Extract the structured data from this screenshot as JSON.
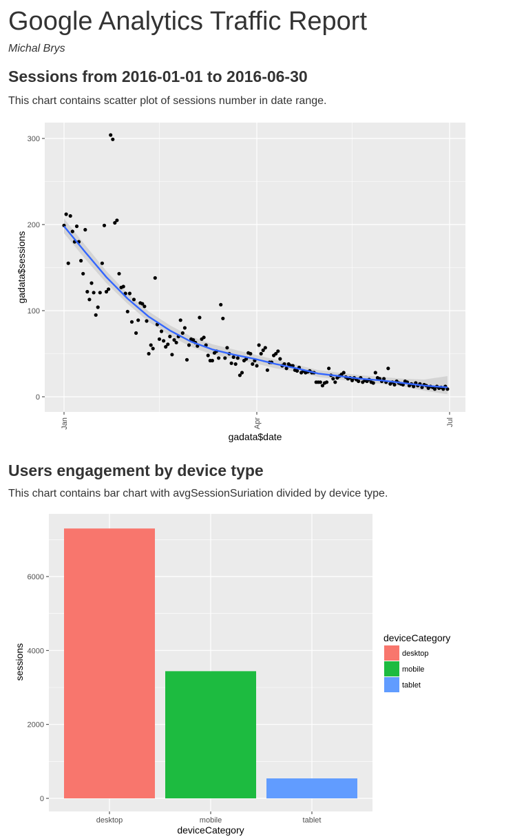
{
  "report": {
    "title": "Google Analytics Traffic Report",
    "author": "Michal Brys"
  },
  "sections": [
    {
      "heading": "Sessions from 2016-01-01 to 2016-06-30",
      "description": "This chart contains scatter plot of sessions number in date range."
    },
    {
      "heading": "Users engagement by device type",
      "description": "This chart contains bar chart with avgSessionSuriation divided by device type."
    }
  ],
  "colors": {
    "panel_bg": "#ebebeb",
    "grid": "#ffffff",
    "point": "#000000",
    "smooth_line": "#3366ff",
    "ribbon": "#cccccc",
    "desktop": "#f8766d",
    "mobile": "#1dbb40",
    "tablet": "#619cff"
  },
  "chart_data": [
    {
      "type": "scatter",
      "title": "",
      "xlabel": "gadata$date",
      "ylabel": "gadata$sessions",
      "x_tick_labels": [
        "Jan",
        "Apr",
        "Jul"
      ],
      "y_tick_labels": [
        "0",
        "100",
        "200",
        "300"
      ],
      "xlim": [
        "2016-01-01",
        "2016-07-01"
      ],
      "ylim": [
        0,
        300
      ],
      "grid": true,
      "smoothing": "loess with confidence band",
      "points": [
        {
          "x": "2016-01-01",
          "y": 199
        },
        {
          "x": "2016-01-02",
          "y": 212
        },
        {
          "x": "2016-01-03",
          "y": 155
        },
        {
          "x": "2016-01-04",
          "y": 210
        },
        {
          "x": "2016-01-05",
          "y": 192
        },
        {
          "x": "2016-01-06",
          "y": 180
        },
        {
          "x": "2016-01-07",
          "y": 198
        },
        {
          "x": "2016-01-08",
          "y": 180
        },
        {
          "x": "2016-01-09",
          "y": 158
        },
        {
          "x": "2016-01-10",
          "y": 143
        },
        {
          "x": "2016-01-11",
          "y": 194
        },
        {
          "x": "2016-01-12",
          "y": 122
        },
        {
          "x": "2016-01-13",
          "y": 113
        },
        {
          "x": "2016-01-14",
          "y": 132
        },
        {
          "x": "2016-01-15",
          "y": 121
        },
        {
          "x": "2016-01-16",
          "y": 95
        },
        {
          "x": "2016-01-17",
          "y": 104
        },
        {
          "x": "2016-01-18",
          "y": 121
        },
        {
          "x": "2016-01-19",
          "y": 155
        },
        {
          "x": "2016-01-20",
          "y": 199
        },
        {
          "x": "2016-01-21",
          "y": 122
        },
        {
          "x": "2016-01-22",
          "y": 125
        },
        {
          "x": "2016-01-23",
          "y": 304
        },
        {
          "x": "2016-01-24",
          "y": 299
        },
        {
          "x": "2016-01-25",
          "y": 202
        },
        {
          "x": "2016-01-26",
          "y": 205
        },
        {
          "x": "2016-01-27",
          "y": 143
        },
        {
          "x": "2016-01-28",
          "y": 127
        },
        {
          "x": "2016-01-29",
          "y": 128
        },
        {
          "x": "2016-01-30",
          "y": 120
        },
        {
          "x": "2016-01-31",
          "y": 99
        },
        {
          "x": "2016-02-01",
          "y": 120
        },
        {
          "x": "2016-02-02",
          "y": 87
        },
        {
          "x": "2016-02-03",
          "y": 113
        },
        {
          "x": "2016-02-04",
          "y": 74
        },
        {
          "x": "2016-02-05",
          "y": 89
        },
        {
          "x": "2016-02-06",
          "y": 109
        },
        {
          "x": "2016-02-07",
          "y": 108
        },
        {
          "x": "2016-02-08",
          "y": 105
        },
        {
          "x": "2016-02-09",
          "y": 88
        },
        {
          "x": "2016-02-10",
          "y": 50
        },
        {
          "x": "2016-02-11",
          "y": 60
        },
        {
          "x": "2016-02-12",
          "y": 56
        },
        {
          "x": "2016-02-13",
          "y": 138
        },
        {
          "x": "2016-02-14",
          "y": 84
        },
        {
          "x": "2016-02-15",
          "y": 67
        },
        {
          "x": "2016-02-16",
          "y": 76
        },
        {
          "x": "2016-02-17",
          "y": 65
        },
        {
          "x": "2016-02-18",
          "y": 58
        },
        {
          "x": "2016-02-19",
          "y": 61
        },
        {
          "x": "2016-02-20",
          "y": 70
        },
        {
          "x": "2016-02-21",
          "y": 49
        },
        {
          "x": "2016-02-22",
          "y": 66
        },
        {
          "x": "2016-02-23",
          "y": 63
        },
        {
          "x": "2016-02-24",
          "y": 70
        },
        {
          "x": "2016-02-25",
          "y": 89
        },
        {
          "x": "2016-02-26",
          "y": 74
        },
        {
          "x": "2016-02-27",
          "y": 80
        },
        {
          "x": "2016-02-28",
          "y": 43
        },
        {
          "x": "2016-02-29",
          "y": 60
        },
        {
          "x": "2016-03-01",
          "y": 67
        },
        {
          "x": "2016-03-02",
          "y": 66
        },
        {
          "x": "2016-03-03",
          "y": 63
        },
        {
          "x": "2016-03-04",
          "y": 59
        },
        {
          "x": "2016-03-05",
          "y": 92
        },
        {
          "x": "2016-03-06",
          "y": 67
        },
        {
          "x": "2016-03-07",
          "y": 69
        },
        {
          "x": "2016-03-08",
          "y": 60
        },
        {
          "x": "2016-03-09",
          "y": 48
        },
        {
          "x": "2016-03-10",
          "y": 42
        },
        {
          "x": "2016-03-11",
          "y": 42
        },
        {
          "x": "2016-03-12",
          "y": 51
        },
        {
          "x": "2016-03-13",
          "y": 53
        },
        {
          "x": "2016-03-14",
          "y": 45
        },
        {
          "x": "2016-03-15",
          "y": 107
        },
        {
          "x": "2016-03-16",
          "y": 91
        },
        {
          "x": "2016-03-17",
          "y": 45
        },
        {
          "x": "2016-03-18",
          "y": 57
        },
        {
          "x": "2016-03-19",
          "y": 50
        },
        {
          "x": "2016-03-20",
          "y": 39
        },
        {
          "x": "2016-03-21",
          "y": 46
        },
        {
          "x": "2016-03-22",
          "y": 38
        },
        {
          "x": "2016-03-23",
          "y": 45
        },
        {
          "x": "2016-03-24",
          "y": 25
        },
        {
          "x": "2016-03-25",
          "y": 28
        },
        {
          "x": "2016-03-26",
          "y": 42
        },
        {
          "x": "2016-03-27",
          "y": 44
        },
        {
          "x": "2016-03-28",
          "y": 51
        },
        {
          "x": "2016-03-29",
          "y": 50
        },
        {
          "x": "2016-03-30",
          "y": 38
        },
        {
          "x": "2016-03-31",
          "y": 42
        },
        {
          "x": "2016-04-01",
          "y": 36
        },
        {
          "x": "2016-04-02",
          "y": 60
        },
        {
          "x": "2016-04-03",
          "y": 50
        },
        {
          "x": "2016-04-04",
          "y": 54
        },
        {
          "x": "2016-04-05",
          "y": 57
        },
        {
          "x": "2016-04-06",
          "y": 31
        },
        {
          "x": "2016-04-07",
          "y": 40
        },
        {
          "x": "2016-04-08",
          "y": 40
        },
        {
          "x": "2016-04-09",
          "y": 48
        },
        {
          "x": "2016-04-10",
          "y": 50
        },
        {
          "x": "2016-04-11",
          "y": 53
        },
        {
          "x": "2016-04-12",
          "y": 44
        },
        {
          "x": "2016-04-13",
          "y": 36
        },
        {
          "x": "2016-04-14",
          "y": 38
        },
        {
          "x": "2016-04-15",
          "y": 33
        },
        {
          "x": "2016-04-16",
          "y": 38
        },
        {
          "x": "2016-04-17",
          "y": 36
        },
        {
          "x": "2016-04-18",
          "y": 36
        },
        {
          "x": "2016-04-19",
          "y": 31
        },
        {
          "x": "2016-04-20",
          "y": 30
        },
        {
          "x": "2016-04-21",
          "y": 34
        },
        {
          "x": "2016-04-22",
          "y": 28
        },
        {
          "x": "2016-04-23",
          "y": 30
        },
        {
          "x": "2016-04-24",
          "y": 28
        },
        {
          "x": "2016-04-25",
          "y": 29
        },
        {
          "x": "2016-04-26",
          "y": 30
        },
        {
          "x": "2016-04-27",
          "y": 28
        },
        {
          "x": "2016-04-28",
          "y": 28
        },
        {
          "x": "2016-04-29",
          "y": 17
        },
        {
          "x": "2016-04-30",
          "y": 17
        },
        {
          "x": "2016-05-01",
          "y": 17
        },
        {
          "x": "2016-05-02",
          "y": 13
        },
        {
          "x": "2016-05-03",
          "y": 16
        },
        {
          "x": "2016-05-04",
          "y": 17
        },
        {
          "x": "2016-05-05",
          "y": 33
        },
        {
          "x": "2016-05-06",
          "y": 25
        },
        {
          "x": "2016-05-07",
          "y": 21
        },
        {
          "x": "2016-05-08",
          "y": 17
        },
        {
          "x": "2016-05-09",
          "y": 22
        },
        {
          "x": "2016-05-10",
          "y": 24
        },
        {
          "x": "2016-05-11",
          "y": 26
        },
        {
          "x": "2016-05-12",
          "y": 28
        },
        {
          "x": "2016-05-13",
          "y": 23
        },
        {
          "x": "2016-05-14",
          "y": 21
        },
        {
          "x": "2016-05-15",
          "y": 22
        },
        {
          "x": "2016-05-16",
          "y": 19
        },
        {
          "x": "2016-05-17",
          "y": 22
        },
        {
          "x": "2016-05-18",
          "y": 20
        },
        {
          "x": "2016-05-19",
          "y": 18
        },
        {
          "x": "2016-05-20",
          "y": 22
        },
        {
          "x": "2016-05-21",
          "y": 17
        },
        {
          "x": "2016-05-22",
          "y": 19
        },
        {
          "x": "2016-05-23",
          "y": 18
        },
        {
          "x": "2016-05-24",
          "y": 20
        },
        {
          "x": "2016-05-25",
          "y": 17
        },
        {
          "x": "2016-05-26",
          "y": 16
        },
        {
          "x": "2016-05-27",
          "y": 28
        },
        {
          "x": "2016-05-28",
          "y": 22
        },
        {
          "x": "2016-05-29",
          "y": 21
        },
        {
          "x": "2016-05-30",
          "y": 18
        },
        {
          "x": "2016-05-31",
          "y": 21
        },
        {
          "x": "2016-06-01",
          "y": 17
        },
        {
          "x": "2016-06-02",
          "y": 33
        },
        {
          "x": "2016-06-03",
          "y": 15
        },
        {
          "x": "2016-06-04",
          "y": 17
        },
        {
          "x": "2016-06-05",
          "y": 14
        },
        {
          "x": "2016-06-06",
          "y": 18
        },
        {
          "x": "2016-06-07",
          "y": 16
        },
        {
          "x": "2016-06-08",
          "y": 15
        },
        {
          "x": "2016-06-09",
          "y": 14
        },
        {
          "x": "2016-06-10",
          "y": 18
        },
        {
          "x": "2016-06-11",
          "y": 17
        },
        {
          "x": "2016-06-12",
          "y": 13
        },
        {
          "x": "2016-06-13",
          "y": 15
        },
        {
          "x": "2016-06-14",
          "y": 12
        },
        {
          "x": "2016-06-15",
          "y": 16
        },
        {
          "x": "2016-06-16",
          "y": 13
        },
        {
          "x": "2016-06-17",
          "y": 15
        },
        {
          "x": "2016-06-18",
          "y": 11
        },
        {
          "x": "2016-06-19",
          "y": 14
        },
        {
          "x": "2016-06-20",
          "y": 13
        },
        {
          "x": "2016-06-21",
          "y": 10
        },
        {
          "x": "2016-06-22",
          "y": 12
        },
        {
          "x": "2016-06-23",
          "y": 11
        },
        {
          "x": "2016-06-24",
          "y": 9
        },
        {
          "x": "2016-06-25",
          "y": 12
        },
        {
          "x": "2016-06-26",
          "y": 10
        },
        {
          "x": "2016-06-27",
          "y": 11
        },
        {
          "x": "2016-06-28",
          "y": 9
        },
        {
          "x": "2016-06-29",
          "y": 12
        },
        {
          "x": "2016-06-30",
          "y": 9
        }
      ],
      "smooth": [
        {
          "x": "2016-01-01",
          "y": 198,
          "lo": 190,
          "hi": 207
        },
        {
          "x": "2016-01-11",
          "y": 168,
          "lo": 160,
          "hi": 176
        },
        {
          "x": "2016-01-21",
          "y": 139,
          "lo": 132,
          "hi": 146
        },
        {
          "x": "2016-01-31",
          "y": 114,
          "lo": 108,
          "hi": 120
        },
        {
          "x": "2016-02-10",
          "y": 93,
          "lo": 87,
          "hi": 99
        },
        {
          "x": "2016-02-20",
          "y": 77,
          "lo": 71,
          "hi": 83
        },
        {
          "x": "2016-03-01",
          "y": 64,
          "lo": 58,
          "hi": 70
        },
        {
          "x": "2016-03-11",
          "y": 55,
          "lo": 49,
          "hi": 61
        },
        {
          "x": "2016-03-21",
          "y": 49,
          "lo": 44,
          "hi": 55
        },
        {
          "x": "2016-03-31",
          "y": 44,
          "lo": 39,
          "hi": 49
        },
        {
          "x": "2016-04-10",
          "y": 38,
          "lo": 33,
          "hi": 43
        },
        {
          "x": "2016-04-20",
          "y": 33,
          "lo": 29,
          "hi": 37
        },
        {
          "x": "2016-04-30",
          "y": 27,
          "lo": 23,
          "hi": 31
        },
        {
          "x": "2016-05-10",
          "y": 24,
          "lo": 20,
          "hi": 28
        },
        {
          "x": "2016-05-20",
          "y": 21,
          "lo": 17,
          "hi": 25
        },
        {
          "x": "2016-05-30",
          "y": 19,
          "lo": 15,
          "hi": 23
        },
        {
          "x": "2016-06-09",
          "y": 16,
          "lo": 12,
          "hi": 21
        },
        {
          "x": "2016-06-19",
          "y": 13,
          "lo": 7,
          "hi": 20
        },
        {
          "x": "2016-06-30",
          "y": 11,
          "lo": 3,
          "hi": 24
        }
      ]
    },
    {
      "type": "bar",
      "title": "",
      "xlabel": "deviceCategory",
      "ylabel": "sessions",
      "categories": [
        "desktop",
        "mobile",
        "tablet"
      ],
      "values": [
        7300,
        3440,
        540
      ],
      "y_ticks": [
        0,
        2000,
        4000,
        6000
      ],
      "ylim": [
        -350,
        7700
      ],
      "grid": true,
      "legend": {
        "title": "deviceCategory",
        "placement": "right",
        "entries": [
          "desktop",
          "mobile",
          "tablet"
        ]
      }
    }
  ]
}
